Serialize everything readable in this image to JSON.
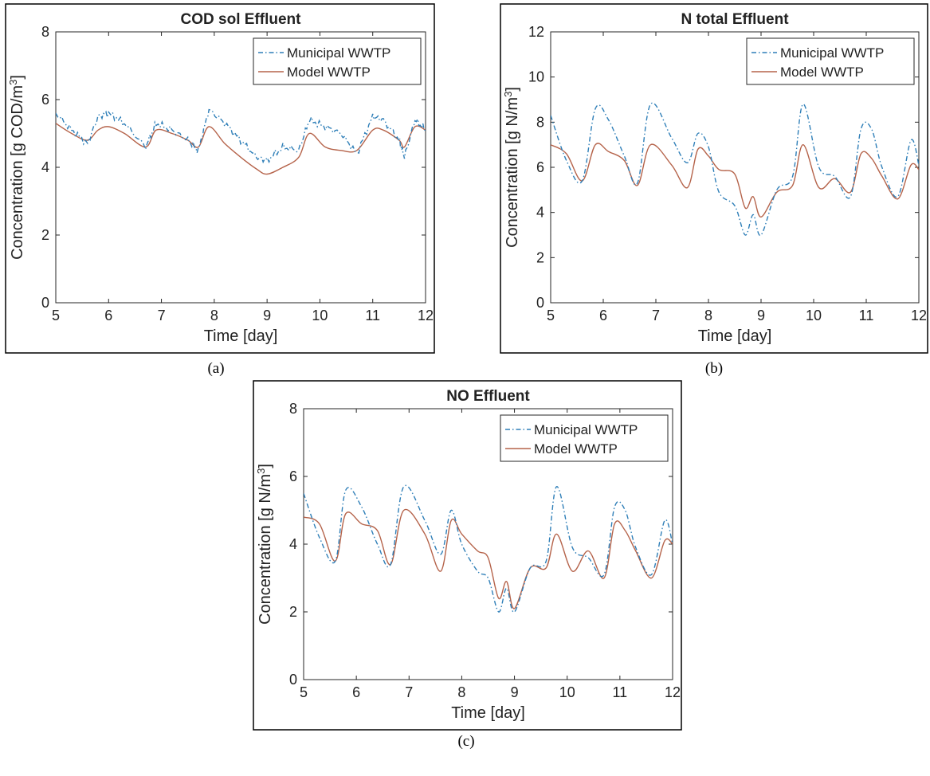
{
  "captions": [
    "(a)",
    "(b)",
    "(c)"
  ],
  "colors": {
    "municipal": "#2f7fb8",
    "model": "#b5634a",
    "axis": "#262626"
  },
  "chart_data": [
    {
      "type": "line",
      "title": "COD sol Effluent",
      "xlabel": "Time [day]",
      "ylabel_main": "Concentration [g COD/m",
      "ylabel_sup": "3",
      "ylabel_end": "]",
      "xlim": [
        5,
        12
      ],
      "ylim": [
        0,
        8
      ],
      "xticks": [
        5,
        6,
        7,
        8,
        9,
        10,
        11,
        12
      ],
      "yticks": [
        0,
        2,
        4,
        6,
        8
      ],
      "legend": "top-right",
      "noise": 0.12,
      "series": [
        {
          "name": "Municipal WWTP",
          "style": "dashdot",
          "x": [
            5,
            5.3,
            5.6,
            5.8,
            6.0,
            6.3,
            6.7,
            6.9,
            7.2,
            7.5,
            7.7,
            7.9,
            8.2,
            8.5,
            8.8,
            9.0,
            9.3,
            9.6,
            9.8,
            10.1,
            10.4,
            10.7,
            11.0,
            11.2,
            11.5,
            11.6,
            11.8,
            12.0
          ],
          "y": [
            5.6,
            5.1,
            4.7,
            5.5,
            5.6,
            5.3,
            4.6,
            5.3,
            5.1,
            4.8,
            4.5,
            5.7,
            5.3,
            4.8,
            4.3,
            4.2,
            4.6,
            4.5,
            5.4,
            5.2,
            5.0,
            4.4,
            5.5,
            5.4,
            4.8,
            4.3,
            5.4,
            5.1
          ]
        },
        {
          "name": "Model WWTP",
          "style": "solid",
          "x": [
            5,
            5.3,
            5.6,
            5.8,
            6.0,
            6.3,
            6.7,
            6.9,
            7.2,
            7.5,
            7.7,
            7.9,
            8.2,
            8.5,
            8.8,
            9.0,
            9.3,
            9.6,
            9.8,
            10.1,
            10.4,
            10.7,
            11.0,
            11.2,
            11.5,
            11.6,
            11.8,
            12.0
          ],
          "y": [
            5.3,
            5.0,
            4.8,
            5.1,
            5.2,
            5.0,
            4.6,
            5.1,
            5.0,
            4.8,
            4.6,
            5.2,
            4.7,
            4.3,
            3.95,
            3.8,
            4.0,
            4.3,
            5.0,
            4.6,
            4.5,
            4.5,
            5.1,
            5.1,
            4.8,
            4.6,
            5.2,
            5.1
          ]
        }
      ]
    },
    {
      "type": "line",
      "title": "N total Effluent",
      "xlabel": "Time [day]",
      "ylabel_main": "Concentration [g N/m",
      "ylabel_sup": "3",
      "ylabel_end": "]",
      "xlim": [
        5,
        12
      ],
      "ylim": [
        0,
        12
      ],
      "xticks": [
        5,
        6,
        7,
        8,
        9,
        10,
        11,
        12
      ],
      "yticks": [
        0,
        2,
        4,
        6,
        8,
        10,
        12
      ],
      "legend": "top-right",
      "noise": 0,
      "series": [
        {
          "name": "Municipal WWTP",
          "style": "dashdot",
          "x": [
            5,
            5.3,
            5.6,
            5.85,
            6.1,
            6.4,
            6.65,
            6.9,
            7.3,
            7.6,
            7.8,
            8.0,
            8.2,
            8.5,
            8.7,
            8.85,
            9.0,
            9.3,
            9.6,
            9.8,
            10.1,
            10.4,
            10.7,
            10.9,
            11.1,
            11.3,
            11.6,
            11.85,
            12.0
          ],
          "y": [
            8.3,
            6.3,
            5.4,
            8.6,
            8.1,
            6.5,
            5.3,
            8.8,
            7.3,
            6.2,
            7.5,
            6.9,
            4.9,
            4.3,
            3.0,
            3.9,
            3.0,
            5.0,
            5.6,
            8.8,
            6.0,
            5.6,
            4.7,
            7.7,
            7.7,
            6.0,
            4.7,
            7.2,
            6.1
          ]
        },
        {
          "name": "Model WWTP",
          "style": "solid",
          "x": [
            5,
            5.3,
            5.6,
            5.85,
            6.1,
            6.4,
            6.65,
            6.9,
            7.3,
            7.6,
            7.8,
            8.0,
            8.2,
            8.5,
            8.7,
            8.85,
            9.0,
            9.3,
            9.6,
            9.8,
            10.1,
            10.4,
            10.7,
            10.9,
            11.1,
            11.3,
            11.6,
            11.85,
            12.0
          ],
          "y": [
            7.0,
            6.6,
            5.4,
            7.0,
            6.7,
            6.3,
            5.2,
            7.0,
            6.1,
            5.1,
            6.8,
            6.5,
            5.9,
            5.7,
            4.2,
            4.7,
            3.8,
            4.9,
            5.2,
            7.0,
            5.1,
            5.5,
            4.9,
            6.6,
            6.4,
            5.6,
            4.6,
            6.1,
            5.9
          ]
        }
      ]
    },
    {
      "type": "line",
      "title": "NO Effluent",
      "xlabel": "Time [day]",
      "ylabel_main": "Concentration [g N/m",
      "ylabel_sup": "3",
      "ylabel_end": "]",
      "xlim": [
        5,
        12
      ],
      "ylim": [
        0,
        8
      ],
      "xticks": [
        5,
        6,
        7,
        8,
        9,
        10,
        11,
        12
      ],
      "yticks": [
        0,
        2,
        4,
        6,
        8
      ],
      "legend": "top-right",
      "noise": 0,
      "series": [
        {
          "name": "Municipal WWTP",
          "style": "dashdot",
          "x": [
            5,
            5.3,
            5.6,
            5.8,
            6.1,
            6.4,
            6.65,
            6.9,
            7.3,
            7.6,
            7.8,
            8.0,
            8.3,
            8.5,
            8.7,
            8.85,
            9.0,
            9.3,
            9.6,
            9.8,
            10.1,
            10.4,
            10.7,
            10.9,
            11.1,
            11.3,
            11.6,
            11.85,
            12.0
          ],
          "y": [
            5.5,
            4.2,
            3.5,
            5.6,
            5.1,
            4.0,
            3.4,
            5.7,
            4.7,
            3.7,
            5.0,
            4.0,
            3.2,
            3.0,
            2.0,
            2.7,
            2.0,
            3.3,
            3.5,
            5.7,
            3.9,
            3.6,
            3.1,
            5.1,
            5.0,
            3.9,
            3.1,
            4.7,
            4.0
          ]
        },
        {
          "name": "Model WWTP",
          "style": "solid",
          "x": [
            5,
            5.3,
            5.6,
            5.8,
            6.1,
            6.4,
            6.65,
            6.9,
            7.3,
            7.6,
            7.8,
            8.0,
            8.3,
            8.5,
            8.7,
            8.85,
            9.0,
            9.3,
            9.6,
            9.8,
            10.1,
            10.4,
            10.7,
            10.9,
            11.1,
            11.3,
            11.6,
            11.85,
            12.0
          ],
          "y": [
            4.8,
            4.6,
            3.5,
            4.9,
            4.6,
            4.4,
            3.4,
            5.0,
            4.3,
            3.2,
            4.7,
            4.3,
            3.8,
            3.6,
            2.4,
            2.9,
            2.1,
            3.3,
            3.3,
            4.3,
            3.2,
            3.8,
            3.0,
            4.6,
            4.4,
            3.8,
            3.0,
            4.1,
            4.0
          ]
        }
      ]
    }
  ]
}
